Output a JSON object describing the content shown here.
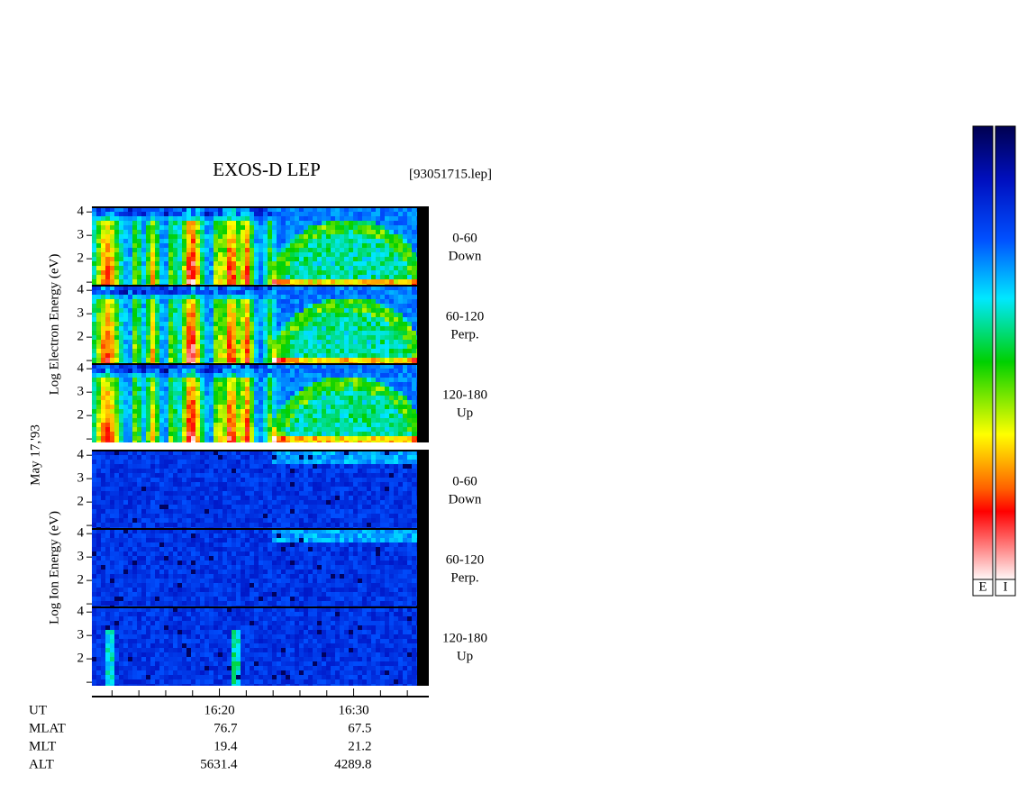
{
  "chart_data": {
    "type": "spectrogram",
    "title": "EXOS-D LEP",
    "file_label": "[93051715.lep]",
    "date_label": "May 17,'93",
    "groups": [
      {
        "ylabel": "Log Electron Energy (eV)",
        "panels": [
          {
            "angle": "0-60",
            "direction": "Down"
          },
          {
            "angle": "60-120",
            "direction": "Perp."
          },
          {
            "angle": "120-180",
            "direction": "Up"
          }
        ]
      },
      {
        "ylabel": "Log Ion Energy (eV)",
        "panels": [
          {
            "angle": "0-60",
            "direction": "Down"
          },
          {
            "angle": "60-120",
            "direction": "Perp."
          },
          {
            "angle": "120-180",
            "direction": "Up"
          }
        ]
      }
    ],
    "ylim": [
      0.85,
      4.2
    ],
    "yticks": [
      2,
      3,
      4
    ],
    "yminor": [
      1
    ],
    "xlim": [
      "16:10:30",
      "16:35:36"
    ],
    "xticks": [
      "16:20",
      "16:30"
    ],
    "xminor": [
      "16:12",
      "16:14",
      "16:16",
      "16:18",
      "16:22",
      "16:24",
      "16:26",
      "16:28",
      "16:32",
      "16:34"
    ],
    "ut_label": "UT",
    "ephemeris": [
      {
        "name": "MLAT",
        "values": [
          76.7,
          67.5
        ]
      },
      {
        "name": "MLT",
        "values": [
          19.4,
          21.2
        ]
      },
      {
        "name": "ALT",
        "values": [
          5631.4,
          4289.8
        ]
      }
    ],
    "colorbar_labels": [
      "E",
      "I"
    ]
  }
}
